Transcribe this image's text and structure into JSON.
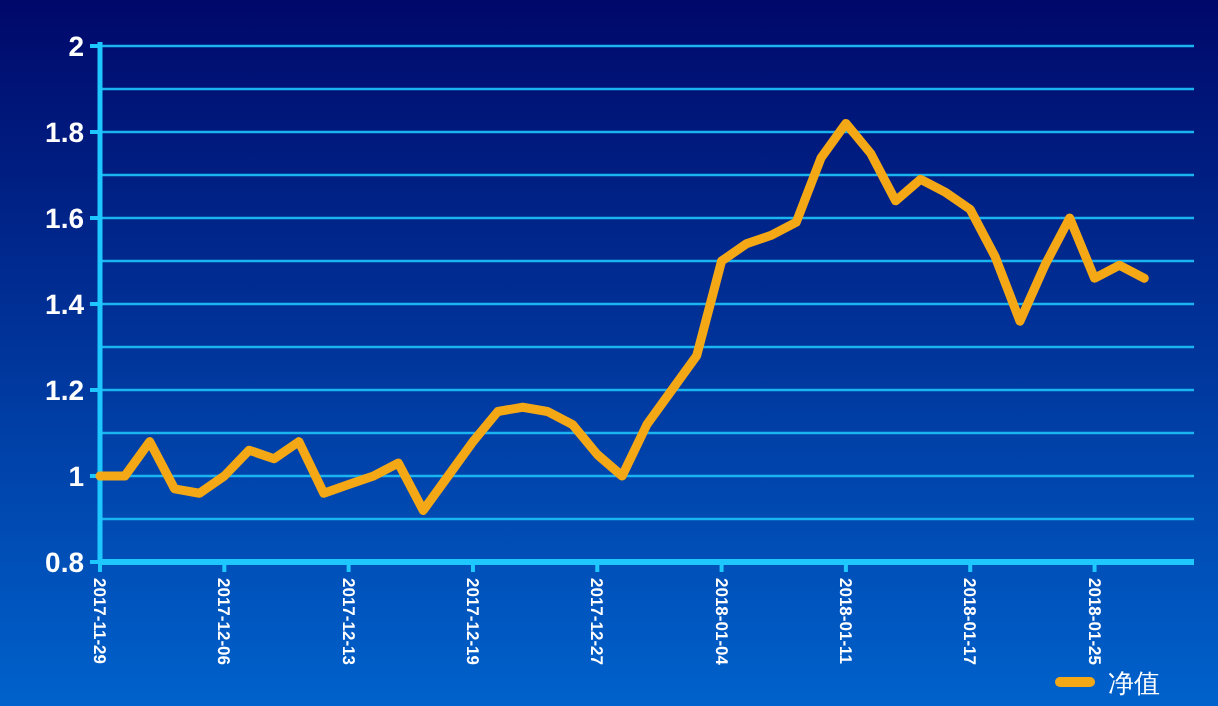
{
  "chart_data": {
    "type": "line",
    "categories": [
      "2017-11-29",
      null,
      null,
      null,
      null,
      "2017-12-06",
      null,
      null,
      null,
      null,
      "2017-12-13",
      null,
      null,
      null,
      null,
      "2017-12-19",
      null,
      null,
      null,
      null,
      "2017-12-27",
      null,
      null,
      null,
      null,
      "2018-01-04",
      null,
      null,
      null,
      null,
      "2018-01-11",
      null,
      null,
      null,
      null,
      "2018-01-17",
      null,
      null,
      null,
      null,
      "2018-01-25",
      null,
      null,
      null,
      null
    ],
    "series": [
      {
        "name": "净值",
        "color": "#f5a815",
        "values": [
          1.0,
          1.0,
          1.08,
          0.97,
          0.96,
          1.0,
          1.06,
          1.04,
          1.08,
          0.96,
          0.98,
          1.0,
          1.03,
          0.92,
          1.0,
          1.08,
          1.15,
          1.16,
          1.15,
          1.12,
          1.05,
          1.0,
          1.12,
          1.2,
          1.28,
          1.5,
          1.54,
          1.56,
          1.59,
          1.74,
          1.82,
          1.75,
          1.64,
          1.69,
          1.66,
          1.62,
          1.51,
          1.36,
          1.49,
          1.6,
          1.46,
          1.49,
          1.46,
          null,
          null
        ]
      }
    ],
    "ylim": [
      0.8,
      2
    ],
    "yticks": [
      0.8,
      {
        "value": 0.9,
        "label": null
      },
      1,
      {
        "value": 1.1,
        "label": null
      },
      1.2,
      {
        "value": 1.3,
        "label": null
      },
      1.4,
      {
        "value": 1.5,
        "label": null
      },
      1.6,
      {
        "value": 1.7,
        "label": null
      },
      1.8,
      {
        "value": 1.9,
        "label": null
      },
      2
    ],
    "grid": "y",
    "legend": "bottom right",
    "marker": "none",
    "line_style": "solid"
  }
}
